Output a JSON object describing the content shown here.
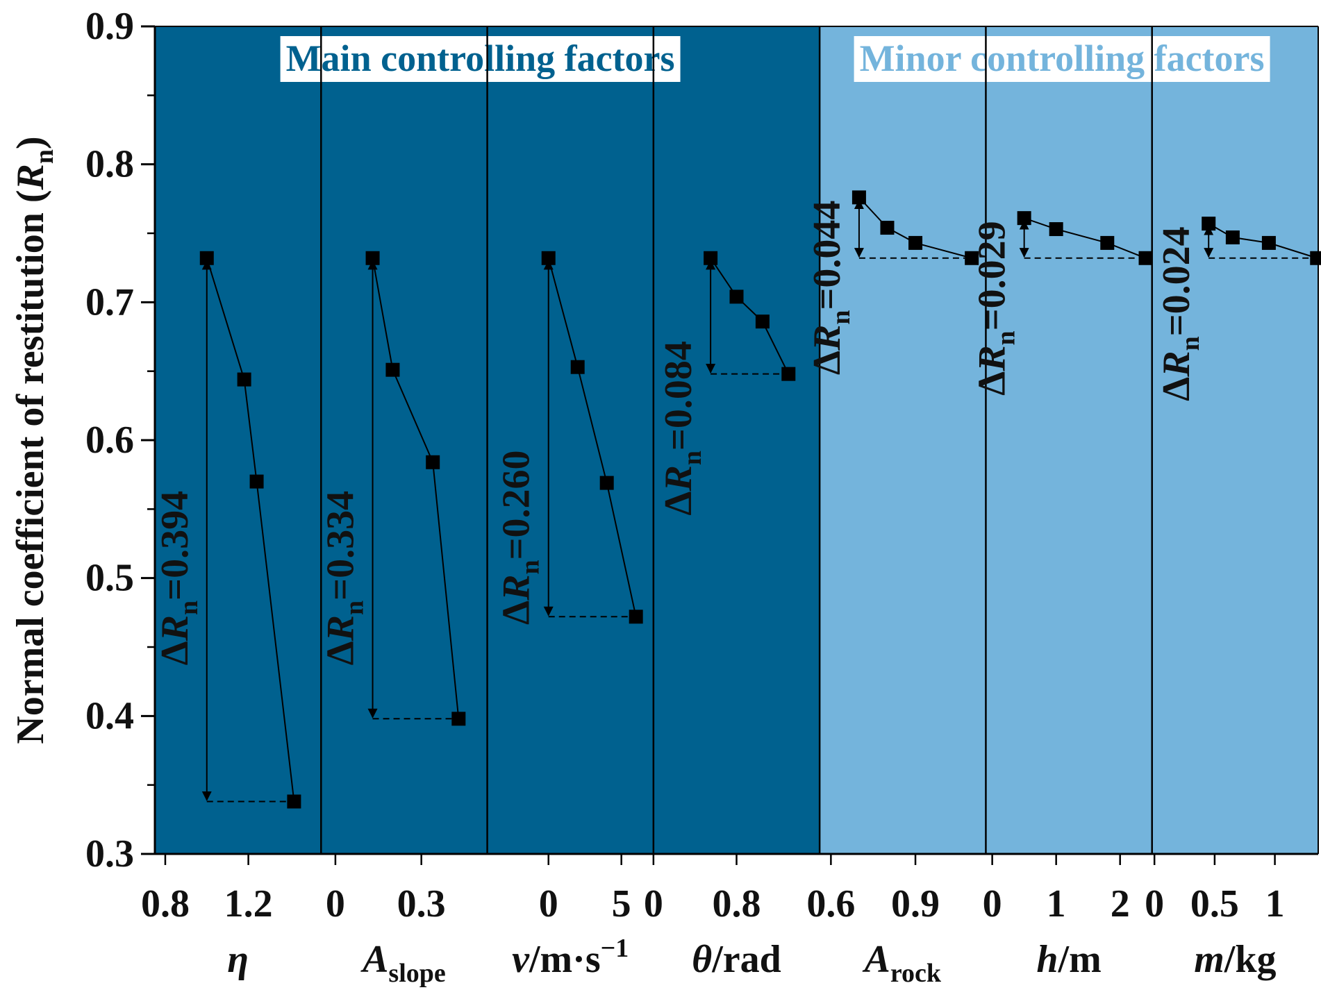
{
  "chart_data": {
    "type": "line",
    "ylabel": "Normal coefficient of restitution (",
    "ylabel_symbol": "R",
    "ylabel_sub": "n",
    "ylabel_close": ")",
    "ylim": [
      0.3,
      0.9
    ],
    "yticks": [
      "0.3",
      "0.4",
      "0.5",
      "0.6",
      "0.7",
      "0.8",
      "0.9"
    ],
    "groups": {
      "main": {
        "label": "Main controlling factors",
        "color": "#00618f"
      },
      "minor": {
        "label": "Minor controlling factors",
        "color": "#74b4dc"
      }
    },
    "delta_symbol": "ΔR",
    "delta_sub": "n",
    "panels": [
      {
        "group": "main",
        "xlabel_main": "η",
        "xlabel_sub": "",
        "xlabel_rest": "",
        "xlim": [
          0.75,
          1.55
        ],
        "xticks": [
          {
            "v": 0.8,
            "t": "0.8"
          },
          {
            "v": 1.2,
            "t": "1.2"
          }
        ],
        "x": [
          1.0,
          1.18,
          1.24,
          1.42
        ],
        "y": [
          0.732,
          0.644,
          0.57,
          0.338
        ],
        "delta": "=0.394"
      },
      {
        "group": "main",
        "xlabel_main": "A",
        "xlabel_sub": "slope",
        "xlabel_rest": "",
        "xlim": [
          -0.05,
          0.53
        ],
        "xticks": [
          {
            "v": 0,
            "t": "0"
          },
          {
            "v": 0.3,
            "t": "0.3"
          }
        ],
        "x": [
          0.13,
          0.2,
          0.34,
          0.43
        ],
        "y": [
          0.732,
          0.651,
          0.584,
          0.398
        ],
        "delta": "=0.334"
      },
      {
        "group": "main",
        "xlabel_main": "v",
        "xlabel_sub": "",
        "xlabel_rest": "/m·s",
        "xlabel_sup": "−1",
        "xlim": [
          -4.2,
          7.2
        ],
        "xticks": [
          {
            "v": 0,
            "t": "0"
          },
          {
            "v": 5,
            "t": "5"
          }
        ],
        "x": [
          0,
          2,
          4,
          6
        ],
        "y": [
          0.732,
          0.653,
          0.569,
          0.472
        ],
        "delta": "=0.260"
      },
      {
        "group": "main",
        "xlabel_main": "θ",
        "xlabel_sub": "",
        "xlabel_rest": "/rad",
        "xlim": [
          0,
          1.6
        ],
        "xticks": [
          {
            "v": 0,
            "t": "0"
          },
          {
            "v": 0.8,
            "t": "0.8"
          }
        ],
        "x": [
          0.55,
          0.8,
          1.05,
          1.3
        ],
        "y": [
          0.732,
          0.704,
          0.686,
          0.648
        ],
        "delta": "=0.084"
      },
      {
        "group": "minor",
        "xlabel_main": "A",
        "xlabel_sub": "rock",
        "xlabel_rest": "",
        "xlim": [
          0.56,
          1.15
        ],
        "xticks": [
          {
            "v": 0.6,
            "t": "0.6"
          },
          {
            "v": 0.9,
            "t": "0.9"
          }
        ],
        "x": [
          0.7,
          0.8,
          0.9,
          1.1
        ],
        "y": [
          0.776,
          0.754,
          0.743,
          0.732
        ],
        "delta": "=0.044"
      },
      {
        "group": "minor",
        "xlabel_main": "h",
        "xlabel_sub": "",
        "xlabel_rest": "/m",
        "xlim": [
          -0.1,
          2.5
        ],
        "xticks": [
          {
            "v": 0,
            "t": "0"
          },
          {
            "v": 1,
            "t": "1"
          },
          {
            "v": 2,
            "t": "2"
          }
        ],
        "x": [
          0.5,
          1.0,
          1.8,
          2.4
        ],
        "y": [
          0.761,
          0.753,
          0.743,
          0.732
        ],
        "delta": "=0.029"
      },
      {
        "group": "minor",
        "xlabel_main": "m",
        "xlabel_sub": "",
        "xlabel_rest": "/kg",
        "xlim": [
          -0.02,
          1.36
        ],
        "xticks": [
          {
            "v": 0,
            "t": "0"
          },
          {
            "v": 0.5,
            "t": "0.5"
          },
          {
            "v": 1,
            "t": "1"
          }
        ],
        "x": [
          0.45,
          0.65,
          0.95,
          1.35
        ],
        "y": [
          0.757,
          0.747,
          0.743,
          0.732
        ],
        "delta": "=0.024"
      }
    ]
  }
}
